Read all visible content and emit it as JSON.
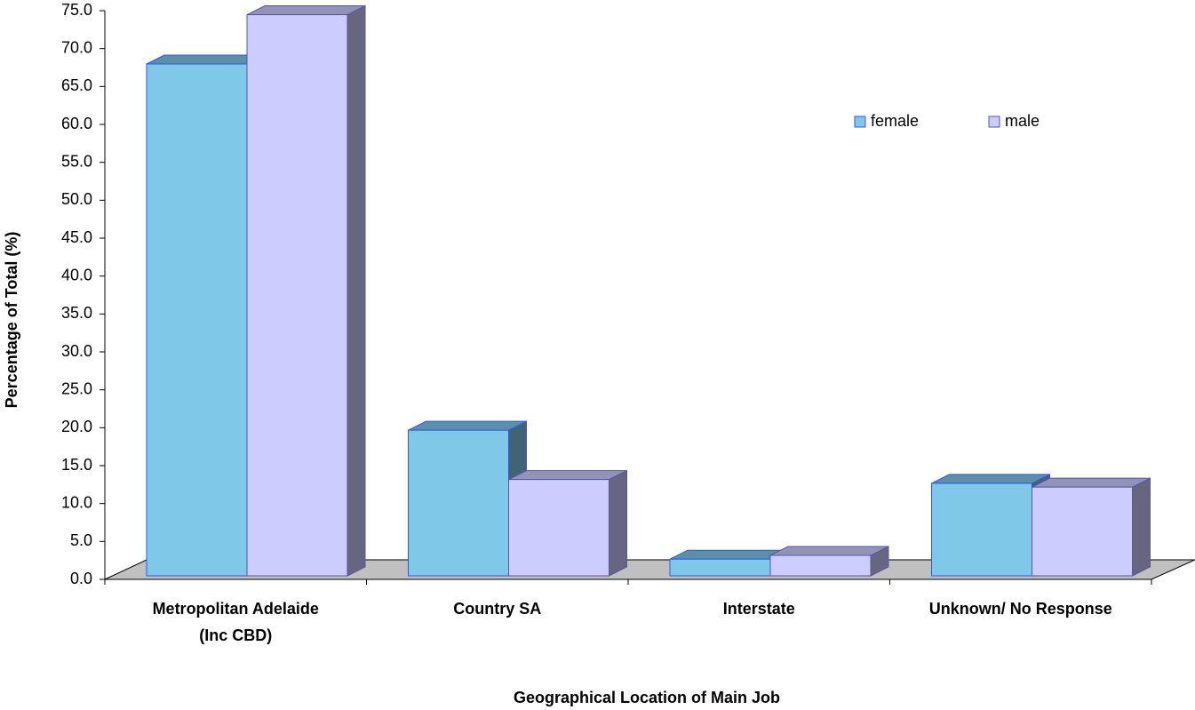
{
  "chart_data": {
    "type": "bar3d",
    "categories": [
      "Metropolitan Adelaide\n(Inc CBD)",
      "Country SA",
      "Interstate",
      "Unknown/ No Response"
    ],
    "series": [
      {
        "name": "female",
        "color": "#80c8e8",
        "values": [
          67.5,
          19.2,
          2.2,
          12.2
        ]
      },
      {
        "name": "male",
        "color": "#ccccff",
        "values": [
          74.0,
          12.7,
          2.7,
          11.7
        ]
      }
    ],
    "ylim": [
      0,
      75
    ],
    "yticks": [
      {
        "value": 0,
        "label": "0.0"
      },
      {
        "value": 5,
        "label": "5.0"
      },
      {
        "value": 10,
        "label": "10.0"
      },
      {
        "value": 15,
        "label": "15.0"
      },
      {
        "value": 20,
        "label": "20.0"
      },
      {
        "value": 25,
        "label": "25.0"
      },
      {
        "value": 30,
        "label": "30.0"
      },
      {
        "value": 35,
        "label": "35.0"
      },
      {
        "value": 40,
        "label": "40.0"
      },
      {
        "value": 45,
        "label": "45.0"
      },
      {
        "value": 50,
        "label": "50.0"
      },
      {
        "value": 55,
        "label": "55.0"
      },
      {
        "value": 60,
        "label": "60.0"
      },
      {
        "value": 65,
        "label": "65.0"
      },
      {
        "value": 70,
        "label": "70.0"
      },
      {
        "value": 75,
        "label": "75.0"
      }
    ],
    "xlabel": "Geographical Location of Main Job",
    "ylabel": "Percentage of Total (%)",
    "legend": "upper right",
    "grid": false
  }
}
